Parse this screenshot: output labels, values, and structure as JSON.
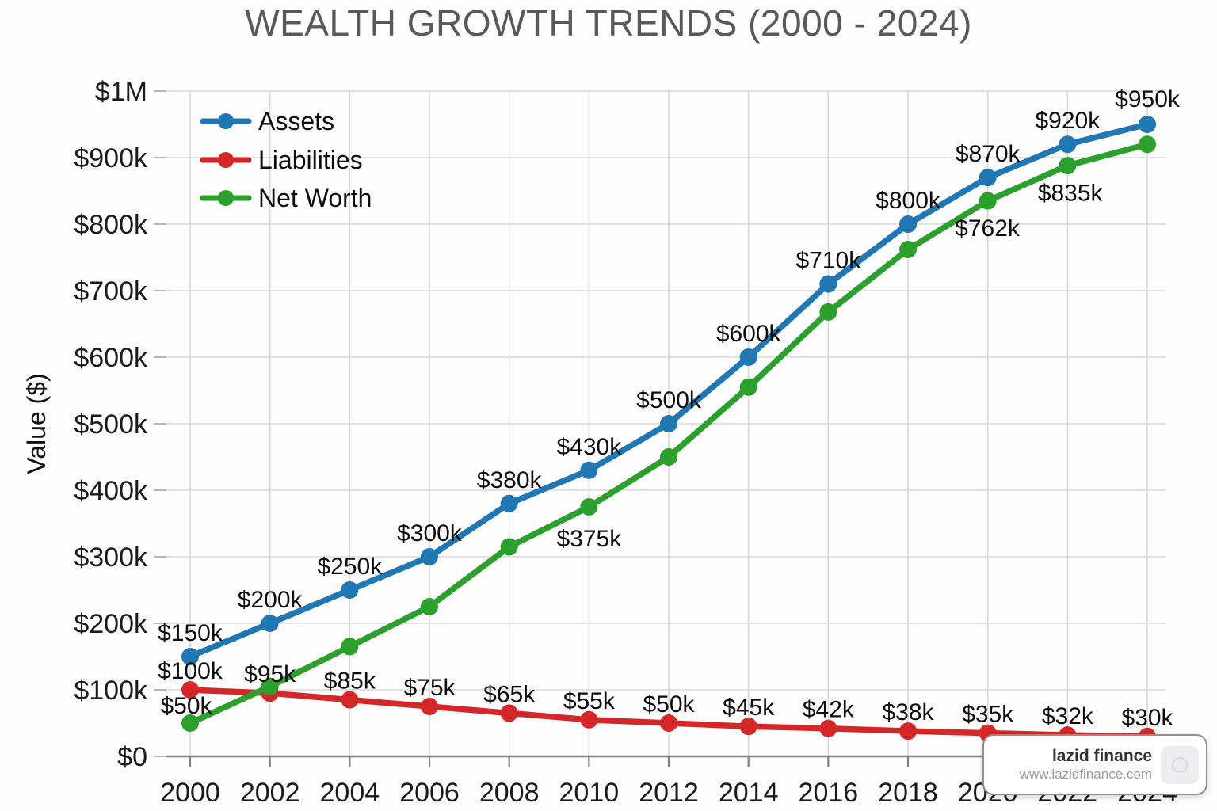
{
  "page": {
    "title": "WEALTH GROWTH TRENDS (2000 - 2024)"
  },
  "watermark": {
    "brand": "lazid finance",
    "url": "www.lazidfinance.com"
  },
  "chart_data": {
    "type": "line",
    "title": "WEALTH GROWTH TRENDS (2000 - 2024)",
    "xlabel": "",
    "ylabel": "Value ($)",
    "y_unit": "thousand USD",
    "ylim": [
      0,
      1000
    ],
    "grid": true,
    "legend_position": "upper-left",
    "x": [
      2000,
      2002,
      2004,
      2006,
      2008,
      2010,
      2012,
      2014,
      2016,
      2018,
      2020,
      2022,
      2024
    ],
    "x_tick_labels": [
      "2000",
      "2002",
      "2004",
      "2006",
      "2008",
      "2010",
      "2012",
      "2014",
      "2016",
      "2018",
      "2020",
      "2022",
      "2024"
    ],
    "y_ticks": [
      0,
      100,
      200,
      300,
      400,
      500,
      600,
      700,
      800,
      900,
      1000
    ],
    "y_tick_labels": [
      "$0",
      "$100k",
      "$200k",
      "$300k",
      "$400k",
      "$500k",
      "$600k",
      "$700k",
      "$800k",
      "$900k",
      "$1M"
    ],
    "series": [
      {
        "name": "Assets",
        "color": "#1f77b4",
        "values": [
          150,
          200,
          250,
          300,
          380,
          430,
          500,
          600,
          710,
          800,
          870,
          920,
          950
        ],
        "point_labels": [
          "$150k",
          "$200k",
          "$250k",
          "$300k",
          "$380k",
          "$430k",
          "$500k",
          "$600k",
          "$710k",
          "$800k",
          "$870k",
          "$920k",
          "$950k"
        ],
        "label_offsets": [
          [
            0,
            -20
          ],
          [
            0,
            -20
          ],
          [
            0,
            -20
          ],
          [
            0,
            -20
          ],
          [
            0,
            -20
          ],
          [
            0,
            -20
          ],
          [
            0,
            -20
          ],
          [
            0,
            -20
          ],
          [
            0,
            -20
          ],
          [
            0,
            -20
          ],
          [
            0,
            -20
          ],
          [
            0,
            -20
          ],
          [
            0,
            -22
          ]
        ]
      },
      {
        "name": "Liabilities",
        "color": "#d62728",
        "values": [
          100,
          95,
          85,
          75,
          65,
          55,
          50,
          45,
          42,
          38,
          35,
          32,
          30
        ],
        "point_labels": [
          "$100k",
          "$95k",
          "$85k",
          "$75k",
          "$65k",
          "$55k",
          "$50k",
          "$45k",
          "$42k",
          "$38k",
          "$35k",
          "$32k",
          "$30k"
        ],
        "label_offsets": [
          [
            0,
            -14
          ],
          [
            0,
            -14
          ],
          [
            0,
            -14
          ],
          [
            0,
            -14
          ],
          [
            0,
            -14
          ],
          [
            0,
            -14
          ],
          [
            0,
            -14
          ],
          [
            0,
            -14
          ],
          [
            0,
            -14
          ],
          [
            0,
            -14
          ],
          [
            0,
            -14
          ],
          [
            0,
            -14
          ],
          [
            0,
            -14
          ]
        ]
      },
      {
        "name": "Net Worth",
        "color": "#2ca02c",
        "values": [
          50,
          105,
          165,
          225,
          315,
          375,
          450,
          555,
          668,
          762,
          835,
          888,
          920
        ],
        "point_labels": [
          "$50k",
          null,
          null,
          null,
          null,
          "$375k",
          null,
          null,
          null,
          "$762k",
          "$835k",
          null,
          null
        ],
        "label_offsets": [
          [
            -5,
            -12
          ],
          null,
          null,
          null,
          null,
          [
            0,
            50
          ],
          null,
          null,
          null,
          [
            100,
            -17
          ],
          [
            104,
            0
          ],
          null,
          null
        ]
      }
    ]
  }
}
